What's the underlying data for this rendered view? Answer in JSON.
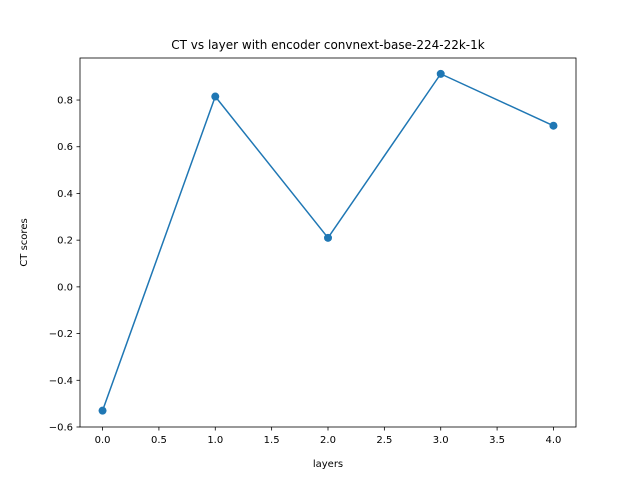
{
  "chart_data": {
    "type": "line",
    "title": "CT vs layer with encoder convnext-base-224-22k-1k",
    "xlabel": "layers",
    "ylabel": "CT scores",
    "x": [
      0,
      1,
      2,
      3,
      4
    ],
    "series": [
      {
        "values": [
          -0.53,
          0.815,
          0.21,
          0.912,
          0.69
        ],
        "color": "#1f77b4",
        "marker": "circle"
      }
    ],
    "xlim": [
      -0.2,
      4.2
    ],
    "ylim": [
      -0.6,
      0.98
    ],
    "xticks": [
      0,
      0.5,
      1,
      1.5,
      2,
      2.5,
      3,
      3.5,
      4
    ],
    "xtick_labels": [
      "0.0",
      "0.5",
      "1.0",
      "1.5",
      "2.0",
      "2.5",
      "3.0",
      "3.5",
      "4.0"
    ],
    "yticks": [
      -0.6,
      -0.4,
      -0.2,
      0,
      0.2,
      0.4,
      0.6,
      0.8
    ],
    "ytick_labels": [
      "−0.6",
      "−0.4",
      "−0.2",
      "0.0",
      "0.2",
      "0.4",
      "0.6",
      "0.8"
    ],
    "grid": false,
    "legend": "none"
  }
}
